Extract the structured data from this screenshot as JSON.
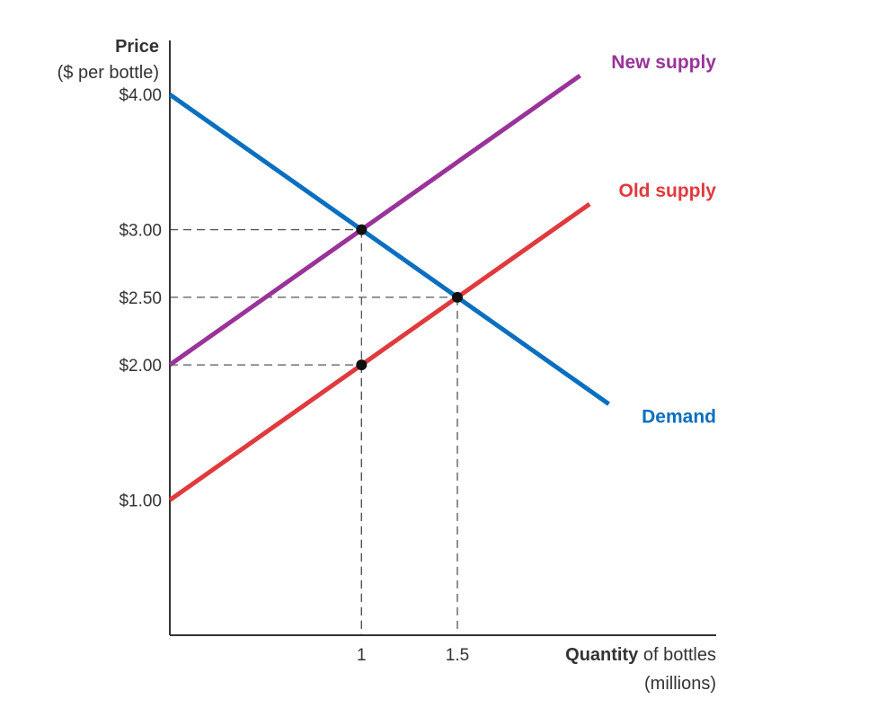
{
  "chart_data": {
    "type": "line",
    "title": "",
    "ylabel_line1": "Price",
    "ylabel_line2": "($ per bottle)",
    "xlabel_bold": "Quantity",
    "xlabel_rest": " of bottles",
    "xlabel_line2": "(millions)",
    "xlim": [
      0,
      2.85
    ],
    "ylim": [
      0,
      4.4
    ],
    "y_ticks": [
      {
        "value": 4.0,
        "label": "$4.00"
      },
      {
        "value": 3.0,
        "label": "$3.00"
      },
      {
        "value": 2.5,
        "label": "$2.50"
      },
      {
        "value": 2.0,
        "label": "$2.00"
      },
      {
        "value": 1.0,
        "label": "$1.00"
      }
    ],
    "x_ticks": [
      {
        "value": 1,
        "label": "1"
      },
      {
        "value": 1.5,
        "label": "1.5"
      }
    ],
    "series": [
      {
        "name": "New supply",
        "color": "#993399",
        "x": [
          0,
          2.14
        ],
        "y": [
          2.0,
          4.14
        ]
      },
      {
        "name": "Old supply",
        "color": "#e03a3e",
        "x": [
          0,
          2.19
        ],
        "y": [
          1.0,
          3.19
        ]
      },
      {
        "name": "Demand",
        "color": "#0a6fbf",
        "x": [
          0,
          2.29
        ],
        "y": [
          4.0,
          1.71
        ]
      }
    ],
    "points": [
      {
        "x": 1,
        "y": 3.0
      },
      {
        "x": 1.5,
        "y": 2.5
      },
      {
        "x": 1,
        "y": 2.0
      }
    ],
    "guides": [
      {
        "x": 1,
        "y": 3.0
      },
      {
        "x": 1.5,
        "y": 2.5
      },
      {
        "x": 1,
        "y": 2.0
      }
    ],
    "grid": false,
    "legend": "none"
  }
}
